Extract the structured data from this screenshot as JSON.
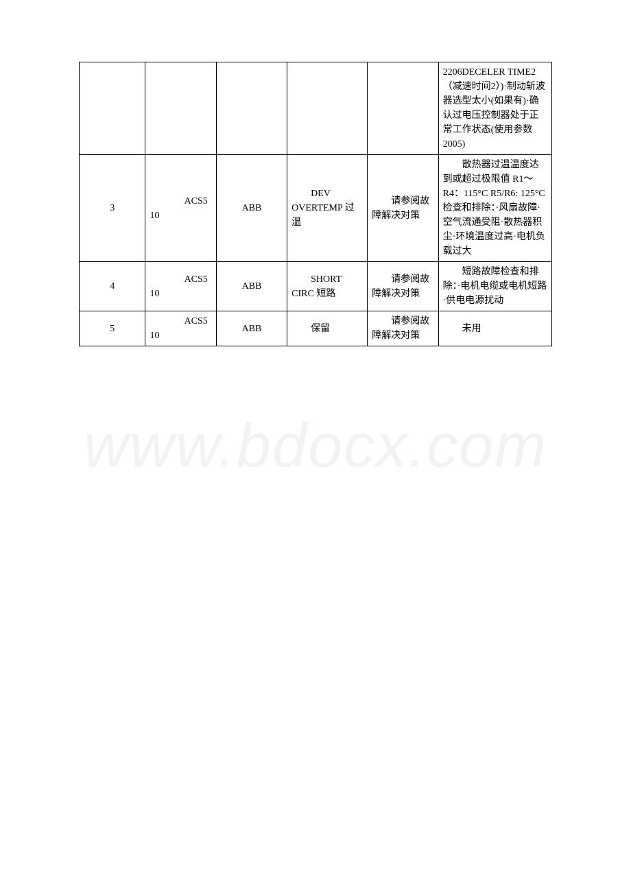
{
  "watermark": "www.bdocx.com",
  "table": {
    "rows": [
      {
        "c1": "",
        "c2": "",
        "c3": "",
        "c4": "",
        "c5": "",
        "c6": "2206DECELER TIME2（减速时间2）)·制动斩波器选型太小(如果有)·确认过电压控制器处于正常工作状态(使用参数2005)"
      },
      {
        "c1": "3",
        "c2_model": "ACS5",
        "c2_num": "10",
        "c3": "ABB",
        "c4": "　　DEV OVERTEMP 过温",
        "c5": "　　请参阅故障解决对策",
        "c6": "　　散热器过温温度达到或超过极限值 R1～R4：115°C R5/R6: 125°C 检查和排除：·风扇故障·空气流通受阻·散热器积尘·环境温度过高·电机负载过大"
      },
      {
        "c1": "4",
        "c2_model": "ACS5",
        "c2_num": "10",
        "c3": "ABB",
        "c4": "　　SHORT CIRC 短路",
        "c5": "　　请参阅故障解决对策",
        "c6": "　　短路故障检查和排除：·电机电缆或电机短路·供电电源扰动"
      },
      {
        "c1": "5",
        "c2_model": "ACS5",
        "c2_num": "10",
        "c3": "ABB",
        "c4": "　　保留",
        "c5": "　　请参阅故障解决对策",
        "c6": "　　未用"
      }
    ]
  }
}
